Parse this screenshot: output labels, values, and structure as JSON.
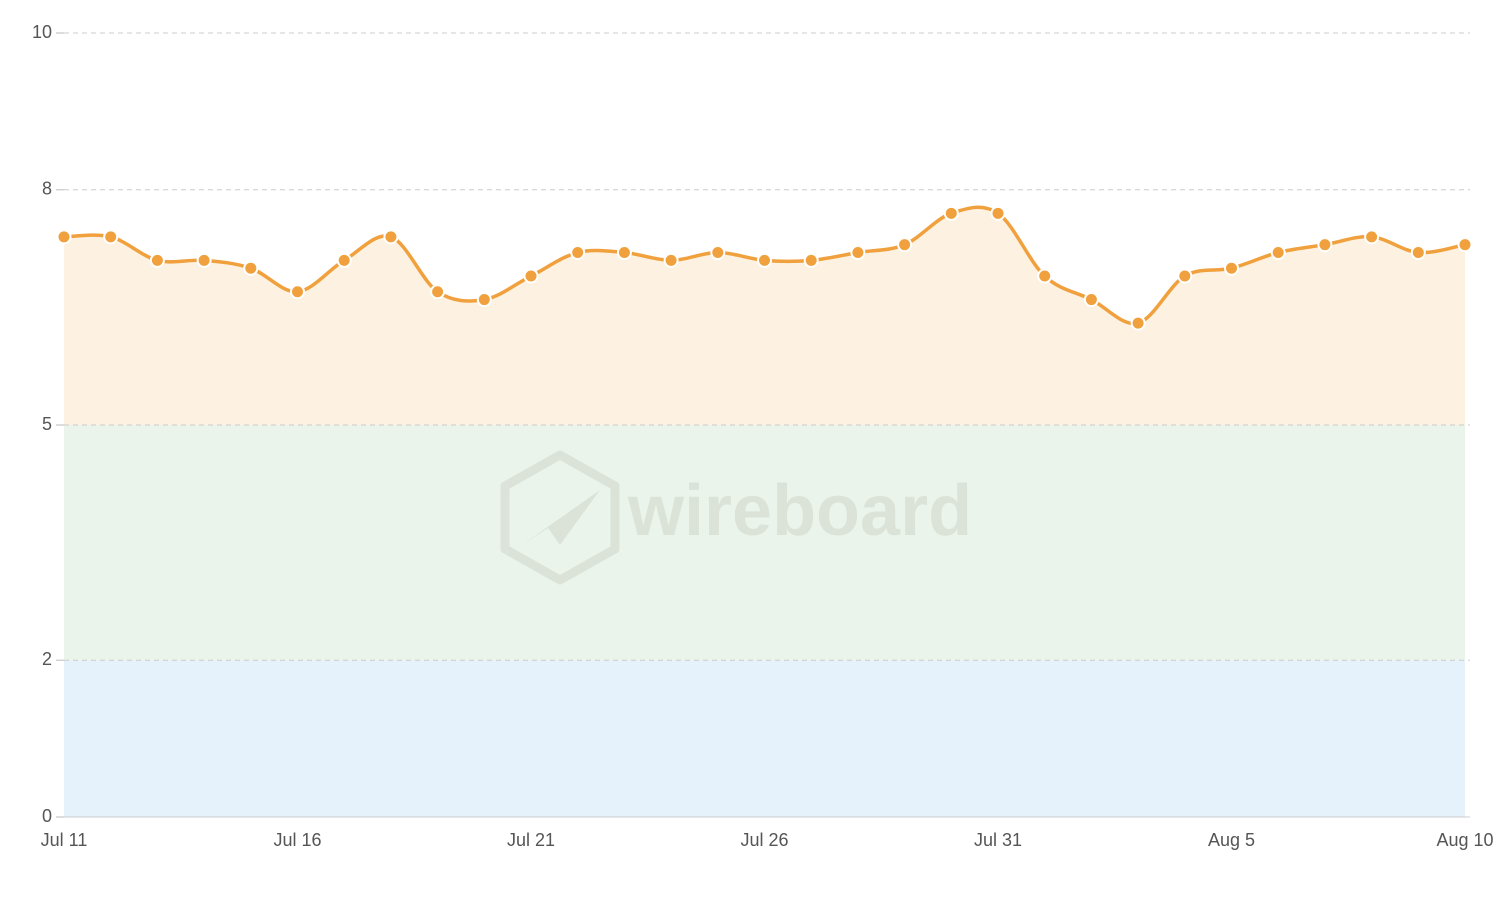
{
  "chart_data": {
    "type": "line",
    "categories": [
      "Jul 11",
      null,
      null,
      null,
      null,
      "Jul 16",
      null,
      null,
      null,
      null,
      "Jul 21",
      null,
      null,
      null,
      null,
      "Jul 26",
      null,
      null,
      null,
      null,
      "Jul 31",
      null,
      null,
      null,
      null,
      "Aug 5",
      null,
      null,
      null,
      null,
      "Aug 10"
    ],
    "series": [
      {
        "color": "#f0a03c",
        "values": [
          7.4,
          7.4,
          7.1,
          7.1,
          7.0,
          6.7,
          7.1,
          7.4,
          6.7,
          6.6,
          6.9,
          7.2,
          7.2,
          7.1,
          7.2,
          7.1,
          7.1,
          7.2,
          7.3,
          7.7,
          7.7,
          6.9,
          6.6,
          6.3,
          6.9,
          7.0,
          7.2,
          7.3,
          7.4,
          7.2,
          7.3
        ]
      }
    ],
    "ylim": [
      0,
      10
    ],
    "yticks": [
      0,
      2,
      5,
      8,
      10
    ],
    "grid": true,
    "bands": [
      {
        "from": 0,
        "to": 2,
        "color": "#e5f1fb"
      },
      {
        "from": 2,
        "to": 5,
        "color": "#ebf4ea"
      }
    ],
    "area_color": "#fdf2e1",
    "watermark": "wireboard"
  }
}
